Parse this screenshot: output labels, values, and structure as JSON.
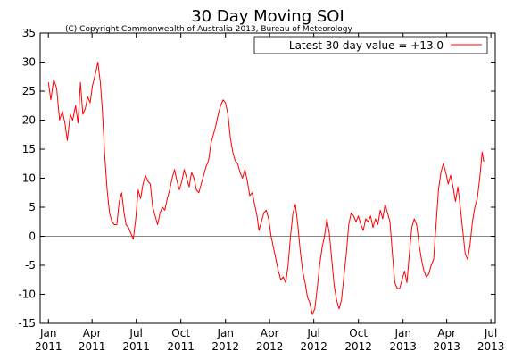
{
  "chart_data": {
    "type": "line",
    "title": "30 Day Moving SOI",
    "subtitle": "(C) Copyright Commonwealth of Australia 2013, Bureau of Meteorology",
    "legend": {
      "label": "Latest 30 day value = +13.0",
      "position": "top-right"
    },
    "xlim": [
      "2010-12-15",
      "2013-07-10"
    ],
    "ylim": [
      -15,
      35
    ],
    "y_ticks": [
      -15,
      -10,
      -5,
      0,
      5,
      10,
      15,
      20,
      25,
      30,
      35
    ],
    "x_ticks": [
      {
        "date": "2011-01-01",
        "month": "Jan",
        "year": "2011"
      },
      {
        "date": "2011-04-01",
        "month": "Apr",
        "year": "2011"
      },
      {
        "date": "2011-07-01",
        "month": "Jul",
        "year": "2011"
      },
      {
        "date": "2011-10-01",
        "month": "Oct",
        "year": "2011"
      },
      {
        "date": "2012-01-01",
        "month": "Jan",
        "year": "2012"
      },
      {
        "date": "2012-04-01",
        "month": "Apr",
        "year": "2012"
      },
      {
        "date": "2012-07-01",
        "month": "Jul",
        "year": "2012"
      },
      {
        "date": "2012-10-01",
        "month": "Oct",
        "year": "2012"
      },
      {
        "date": "2013-01-01",
        "month": "Jan",
        "year": "2013"
      },
      {
        "date": "2013-04-01",
        "month": "Apr",
        "year": "2013"
      },
      {
        "date": "2013-07-01",
        "month": "Jul",
        "year": "2013"
      }
    ],
    "zero_line": true,
    "grid": false,
    "series": [
      {
        "name": "",
        "color": "#ff0000",
        "points": [
          [
            "2011-01-01",
            26.5
          ],
          [
            "2011-01-06",
            23.5
          ],
          [
            "2011-01-12",
            27.0
          ],
          [
            "2011-01-18",
            25.5
          ],
          [
            "2011-01-24",
            20.0
          ],
          [
            "2011-01-30",
            21.5
          ],
          [
            "2011-02-04",
            19.5
          ],
          [
            "2011-02-09",
            16.5
          ],
          [
            "2011-02-15",
            21.0
          ],
          [
            "2011-02-20",
            20.0
          ],
          [
            "2011-02-26",
            22.5
          ],
          [
            "2011-03-03",
            19.5
          ],
          [
            "2011-03-08",
            26.5
          ],
          [
            "2011-03-13",
            21.0
          ],
          [
            "2011-03-18",
            22.0
          ],
          [
            "2011-03-23",
            24.0
          ],
          [
            "2011-03-28",
            23.0
          ],
          [
            "2011-04-02",
            26.0
          ],
          [
            "2011-04-08",
            28.0
          ],
          [
            "2011-04-13",
            30.0
          ],
          [
            "2011-04-18",
            26.5
          ],
          [
            "2011-04-22",
            22.0
          ],
          [
            "2011-04-27",
            14.0
          ],
          [
            "2011-05-02",
            8.0
          ],
          [
            "2011-05-07",
            4.0
          ],
          [
            "2011-05-12",
            2.5
          ],
          [
            "2011-05-17",
            2.0
          ],
          [
            "2011-05-22",
            2.0
          ],
          [
            "2011-05-27",
            6.0
          ],
          [
            "2011-06-01",
            7.5
          ],
          [
            "2011-06-06",
            4.0
          ],
          [
            "2011-06-10",
            2.0
          ],
          [
            "2011-06-15",
            1.5
          ],
          [
            "2011-06-20",
            0.5
          ],
          [
            "2011-06-25",
            -0.5
          ],
          [
            "2011-06-30",
            3.0
          ],
          [
            "2011-07-05",
            8.0
          ],
          [
            "2011-07-10",
            6.5
          ],
          [
            "2011-07-15",
            9.0
          ],
          [
            "2011-07-20",
            10.5
          ],
          [
            "2011-07-25",
            9.5
          ],
          [
            "2011-07-30",
            9.0
          ],
          [
            "2011-08-04",
            5.0
          ],
          [
            "2011-08-09",
            3.5
          ],
          [
            "2011-08-14",
            2.0
          ],
          [
            "2011-08-19",
            4.0
          ],
          [
            "2011-08-24",
            5.0
          ],
          [
            "2011-08-29",
            4.5
          ],
          [
            "2011-09-03",
            6.5
          ],
          [
            "2011-09-08",
            8.0
          ],
          [
            "2011-09-13",
            10.0
          ],
          [
            "2011-09-18",
            11.5
          ],
          [
            "2011-09-23",
            9.5
          ],
          [
            "2011-09-28",
            8.0
          ],
          [
            "2011-10-03",
            9.5
          ],
          [
            "2011-10-08",
            11.5
          ],
          [
            "2011-10-13",
            10.0
          ],
          [
            "2011-10-18",
            8.5
          ],
          [
            "2011-10-23",
            11.0
          ],
          [
            "2011-10-28",
            10.0
          ],
          [
            "2011-11-02",
            8.0
          ],
          [
            "2011-11-07",
            7.5
          ],
          [
            "2011-11-12",
            9.0
          ],
          [
            "2011-11-17",
            10.5
          ],
          [
            "2011-11-22",
            12.0
          ],
          [
            "2011-11-27",
            13.0
          ],
          [
            "2011-12-02",
            16.0
          ],
          [
            "2011-12-07",
            17.5
          ],
          [
            "2011-12-12",
            19.0
          ],
          [
            "2011-12-17",
            21.0
          ],
          [
            "2011-12-22",
            22.5
          ],
          [
            "2011-12-27",
            23.5
          ],
          [
            "2012-01-01",
            23.0
          ],
          [
            "2012-01-06",
            21.0
          ],
          [
            "2012-01-11",
            17.0
          ],
          [
            "2012-01-16",
            14.5
          ],
          [
            "2012-01-21",
            13.0
          ],
          [
            "2012-01-26",
            12.5
          ],
          [
            "2012-01-31",
            11.0
          ],
          [
            "2012-02-05",
            10.0
          ],
          [
            "2012-02-10",
            11.5
          ],
          [
            "2012-02-15",
            9.5
          ],
          [
            "2012-02-20",
            7.0
          ],
          [
            "2012-02-25",
            7.5
          ],
          [
            "2012-03-01",
            5.5
          ],
          [
            "2012-03-06",
            3.5
          ],
          [
            "2012-03-10",
            1.0
          ],
          [
            "2012-03-15",
            2.5
          ],
          [
            "2012-03-20",
            4.0
          ],
          [
            "2012-03-25",
            4.5
          ],
          [
            "2012-03-30",
            3.0
          ],
          [
            "2012-04-04",
            0.0
          ],
          [
            "2012-04-09",
            -2.0
          ],
          [
            "2012-04-14",
            -4.0
          ],
          [
            "2012-04-19",
            -6.0
          ],
          [
            "2012-04-24",
            -7.5
          ],
          [
            "2012-04-29",
            -7.0
          ],
          [
            "2012-05-04",
            -8.0
          ],
          [
            "2012-05-09",
            -5.0
          ],
          [
            "2012-05-14",
            0.0
          ],
          [
            "2012-05-19",
            4.0
          ],
          [
            "2012-05-24",
            5.5
          ],
          [
            "2012-05-29",
            2.0
          ],
          [
            "2012-06-03",
            -2.5
          ],
          [
            "2012-06-08",
            -6.0
          ],
          [
            "2012-06-13",
            -8.0
          ],
          [
            "2012-06-18",
            -10.5
          ],
          [
            "2012-06-23",
            -11.5
          ],
          [
            "2012-06-28",
            -13.5
          ],
          [
            "2012-07-03",
            -12.5
          ],
          [
            "2012-07-08",
            -9.0
          ],
          [
            "2012-07-13",
            -5.0
          ],
          [
            "2012-07-18",
            -2.0
          ],
          [
            "2012-07-23",
            0.0
          ],
          [
            "2012-07-28",
            3.0
          ],
          [
            "2012-08-02",
            0.5
          ],
          [
            "2012-08-07",
            -4.0
          ],
          [
            "2012-08-12",
            -8.5
          ],
          [
            "2012-08-17",
            -11.0
          ],
          [
            "2012-08-22",
            -12.5
          ],
          [
            "2012-08-27",
            -11.0
          ],
          [
            "2012-09-01",
            -7.0
          ],
          [
            "2012-09-06",
            -3.0
          ],
          [
            "2012-09-11",
            2.0
          ],
          [
            "2012-09-16",
            4.0
          ],
          [
            "2012-09-21",
            3.5
          ],
          [
            "2012-09-26",
            2.5
          ],
          [
            "2012-10-01",
            3.5
          ],
          [
            "2012-10-06",
            2.0
          ],
          [
            "2012-10-11",
            1.0
          ],
          [
            "2012-10-16",
            3.0
          ],
          [
            "2012-10-21",
            2.5
          ],
          [
            "2012-10-26",
            3.5
          ],
          [
            "2012-10-31",
            1.5
          ],
          [
            "2012-11-05",
            3.0
          ],
          [
            "2012-11-10",
            2.0
          ],
          [
            "2012-11-15",
            4.5
          ],
          [
            "2012-11-20",
            3.0
          ],
          [
            "2012-11-25",
            5.5
          ],
          [
            "2012-11-30",
            4.0
          ],
          [
            "2012-12-05",
            2.5
          ],
          [
            "2012-12-10",
            -3.0
          ],
          [
            "2012-12-15",
            -8.0
          ],
          [
            "2012-12-20",
            -9.0
          ],
          [
            "2012-12-25",
            -9.0
          ],
          [
            "2012-12-30",
            -7.5
          ],
          [
            "2013-01-04",
            -6.0
          ],
          [
            "2013-01-09",
            -8.0
          ],
          [
            "2013-01-14",
            -3.0
          ],
          [
            "2013-01-19",
            1.5
          ],
          [
            "2013-01-24",
            3.0
          ],
          [
            "2013-01-29",
            2.0
          ],
          [
            "2013-02-03",
            -1.5
          ],
          [
            "2013-02-08",
            -4.0
          ],
          [
            "2013-02-13",
            -6.0
          ],
          [
            "2013-02-18",
            -7.0
          ],
          [
            "2013-02-23",
            -6.5
          ],
          [
            "2013-02-28",
            -5.0
          ],
          [
            "2013-03-05",
            -4.0
          ],
          [
            "2013-03-10",
            2.0
          ],
          [
            "2013-03-15",
            8.0
          ],
          [
            "2013-03-20",
            11.0
          ],
          [
            "2013-03-25",
            12.5
          ],
          [
            "2013-03-30",
            11.0
          ],
          [
            "2013-04-04",
            9.0
          ],
          [
            "2013-04-09",
            10.5
          ],
          [
            "2013-04-14",
            8.5
          ],
          [
            "2013-04-19",
            6.0
          ],
          [
            "2013-04-24",
            8.5
          ],
          [
            "2013-04-29",
            5.0
          ],
          [
            "2013-05-04",
            1.0
          ],
          [
            "2013-05-09",
            -3.0
          ],
          [
            "2013-05-14",
            -4.0
          ],
          [
            "2013-05-19",
            -1.5
          ],
          [
            "2013-05-24",
            2.5
          ],
          [
            "2013-05-29",
            5.0
          ],
          [
            "2013-06-03",
            6.5
          ],
          [
            "2013-06-08",
            10.0
          ],
          [
            "2013-06-13",
            14.5
          ],
          [
            "2013-06-16",
            13.0
          ],
          [
            "2013-06-19",
            13.0
          ]
        ]
      }
    ]
  }
}
